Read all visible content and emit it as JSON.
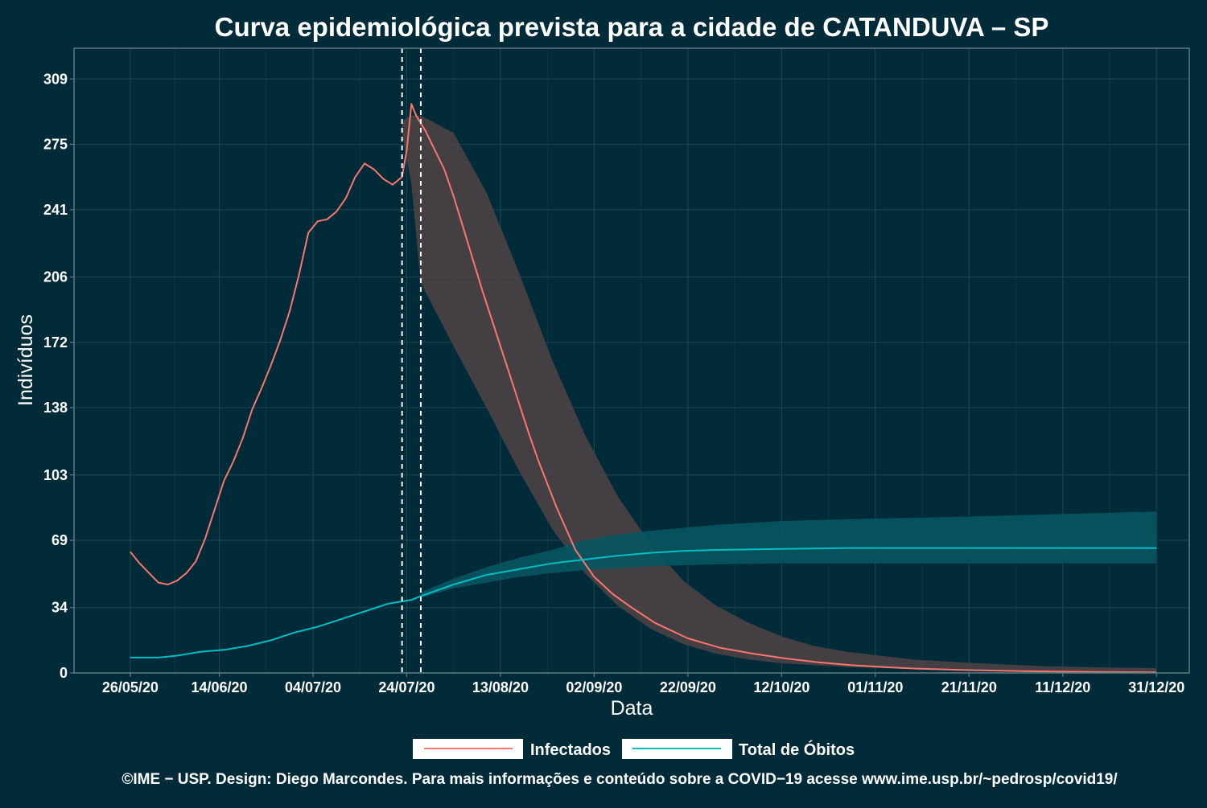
{
  "chart_data": {
    "type": "line",
    "title": "Curva epidemiológica prevista para a cidade de CATANDUVA – SP",
    "xlabel": "Data",
    "ylabel": "Indivíduos",
    "x_start": "2020-05-26",
    "x_end": "2020-12-31",
    "xlim": [
      "2020-05-14",
      "2021-01-07"
    ],
    "ylim": [
      0,
      325
    ],
    "x_ticks": [
      "26/05/20",
      "14/06/20",
      "04/07/20",
      "24/07/20",
      "13/08/20",
      "02/09/20",
      "22/09/20",
      "12/10/20",
      "01/11/20",
      "21/11/20",
      "11/12/20",
      "31/12/20"
    ],
    "y_ticks": [
      "0",
      "34",
      "69",
      "103",
      "138",
      "172",
      "206",
      "241",
      "275",
      "309"
    ],
    "vlines": [
      "2020-07-23",
      "2020-07-27"
    ],
    "grid": true,
    "legend_position": "bottom",
    "series": [
      {
        "name": "Infectados",
        "color": "#f8766d",
        "points": [
          [
            "2020-05-26",
            63
          ],
          [
            "2020-05-28",
            57
          ],
          [
            "2020-05-30",
            52
          ],
          [
            "2020-06-01",
            47
          ],
          [
            "2020-06-03",
            46
          ],
          [
            "2020-06-05",
            48
          ],
          [
            "2020-06-07",
            52
          ],
          [
            "2020-06-09",
            58
          ],
          [
            "2020-06-11",
            70
          ],
          [
            "2020-06-13",
            85
          ],
          [
            "2020-06-15",
            100
          ],
          [
            "2020-06-17",
            110
          ],
          [
            "2020-06-19",
            122
          ],
          [
            "2020-06-21",
            137
          ],
          [
            "2020-06-23",
            148
          ],
          [
            "2020-06-25",
            160
          ],
          [
            "2020-06-27",
            173
          ],
          [
            "2020-06-29",
            188
          ],
          [
            "2020-07-01",
            207
          ],
          [
            "2020-07-03",
            229
          ],
          [
            "2020-07-05",
            235
          ],
          [
            "2020-07-07",
            236
          ],
          [
            "2020-07-09",
            240
          ],
          [
            "2020-07-11",
            247
          ],
          [
            "2020-07-13",
            258
          ],
          [
            "2020-07-15",
            265
          ],
          [
            "2020-07-17",
            262
          ],
          [
            "2020-07-19",
            257
          ],
          [
            "2020-07-21",
            254
          ],
          [
            "2020-07-23",
            258
          ],
          [
            "2020-07-24",
            272
          ],
          [
            "2020-07-25",
            296
          ],
          [
            "2020-07-26",
            290
          ],
          [
            "2020-07-28",
            282
          ],
          [
            "2020-07-30",
            272
          ],
          [
            "2020-08-01",
            262
          ],
          [
            "2020-08-03",
            248
          ],
          [
            "2020-08-05",
            232
          ],
          [
            "2020-08-07",
            216
          ],
          [
            "2020-08-09",
            200
          ],
          [
            "2020-08-11",
            185
          ],
          [
            "2020-08-13",
            170
          ],
          [
            "2020-08-15",
            155
          ],
          [
            "2020-08-17",
            140
          ],
          [
            "2020-08-19",
            125
          ],
          [
            "2020-08-21",
            111
          ],
          [
            "2020-08-25",
            86
          ],
          [
            "2020-08-29",
            64
          ],
          [
            "2020-09-02",
            50
          ],
          [
            "2020-09-06",
            41
          ],
          [
            "2020-09-10",
            34
          ],
          [
            "2020-09-15",
            26
          ],
          [
            "2020-09-22",
            18
          ],
          [
            "2020-09-29",
            13
          ],
          [
            "2020-10-06",
            10
          ],
          [
            "2020-10-13",
            7.5
          ],
          [
            "2020-10-20",
            5.5
          ],
          [
            "2020-10-27",
            4
          ],
          [
            "2020-11-03",
            3
          ],
          [
            "2020-11-10",
            2.2
          ],
          [
            "2020-11-20",
            1.5
          ],
          [
            "2020-12-01",
            1
          ],
          [
            "2020-12-15",
            0.6
          ],
          [
            "2020-12-31",
            0.3
          ]
        ],
        "band": [
          [
            "2020-07-23",
            281,
            287
          ],
          [
            "2020-07-25",
            254,
            290
          ],
          [
            "2020-07-27",
            203,
            290
          ],
          [
            "2020-08-03",
            170,
            281
          ],
          [
            "2020-08-10",
            138,
            250
          ],
          [
            "2020-08-17",
            105,
            208
          ],
          [
            "2020-08-24",
            75,
            163
          ],
          [
            "2020-08-31",
            52,
            124
          ],
          [
            "2020-09-07",
            35,
            92
          ],
          [
            "2020-09-14",
            23,
            67
          ],
          [
            "2020-09-21",
            15,
            48
          ],
          [
            "2020-09-28",
            10,
            35
          ],
          [
            "2020-10-05",
            7,
            26
          ],
          [
            "2020-10-12",
            5,
            19
          ],
          [
            "2020-10-19",
            4,
            14
          ],
          [
            "2020-10-26",
            3,
            11
          ],
          [
            "2020-11-09",
            2,
            7
          ],
          [
            "2020-11-23",
            1.2,
            5
          ],
          [
            "2020-12-07",
            0.8,
            3.5
          ],
          [
            "2020-12-21",
            0.5,
            2.8
          ],
          [
            "2020-12-31",
            0.3,
            2.5
          ]
        ]
      },
      {
        "name": "Total de Óbitos",
        "color": "#00bfc4",
        "points": [
          [
            "2020-05-26",
            8
          ],
          [
            "2020-06-01",
            8
          ],
          [
            "2020-06-05",
            9
          ],
          [
            "2020-06-10",
            11
          ],
          [
            "2020-06-15",
            12
          ],
          [
            "2020-06-20",
            14
          ],
          [
            "2020-06-25",
            17
          ],
          [
            "2020-06-30",
            21
          ],
          [
            "2020-07-05",
            24
          ],
          [
            "2020-07-10",
            28
          ],
          [
            "2020-07-15",
            32
          ],
          [
            "2020-07-20",
            36
          ],
          [
            "2020-07-25",
            38
          ],
          [
            "2020-07-27",
            40
          ],
          [
            "2020-08-03",
            46
          ],
          [
            "2020-08-10",
            51
          ],
          [
            "2020-08-17",
            54
          ],
          [
            "2020-08-24",
            57
          ],
          [
            "2020-08-31",
            59
          ],
          [
            "2020-09-07",
            61
          ],
          [
            "2020-09-14",
            62.5
          ],
          [
            "2020-09-21",
            63.5
          ],
          [
            "2020-09-28",
            64
          ],
          [
            "2020-10-12",
            64.5
          ],
          [
            "2020-10-26",
            65
          ],
          [
            "2020-11-16",
            65
          ],
          [
            "2020-12-31",
            65
          ]
        ],
        "band": [
          [
            "2020-07-27",
            39,
            42
          ],
          [
            "2020-08-03",
            44,
            49
          ],
          [
            "2020-08-10",
            47,
            55
          ],
          [
            "2020-08-17",
            50,
            60
          ],
          [
            "2020-08-24",
            52,
            64
          ],
          [
            "2020-08-31",
            53.5,
            69
          ],
          [
            "2020-09-07",
            54.5,
            72
          ],
          [
            "2020-09-14",
            55.5,
            74
          ],
          [
            "2020-09-28",
            56.5,
            77
          ],
          [
            "2020-10-12",
            57,
            79
          ],
          [
            "2020-10-26",
            57,
            80
          ],
          [
            "2020-11-16",
            57,
            81
          ],
          [
            "2020-12-31",
            57,
            84
          ]
        ]
      }
    ],
    "colors": {
      "background": "#022b39",
      "band": "#4a4144",
      "band_teal": "#08555f",
      "grid": "#1a4450",
      "axis": "#5f7b84"
    }
  },
  "footer": "©IME − USP. Design: Diego Marcondes. Para mais informações e conteúdo sobre a COVID−19 acesse www.ime.usp.br/~pedrosp/covid19/"
}
